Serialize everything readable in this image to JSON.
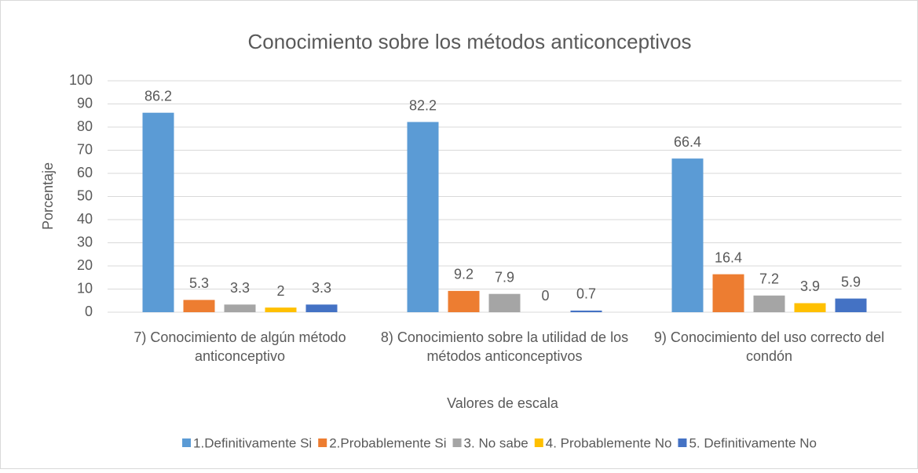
{
  "chart_data": {
    "type": "bar",
    "title": "Conocimiento sobre los métodos anticonceptivos",
    "x_label": "Valores de escala",
    "y_label": "Porcentaje",
    "categories": [
      "7) Conocimiento de algún método anticonceptivo",
      "8) Conocimiento sobre la utilidad de los métodos anticonceptivos",
      "9) Conocimiento del uso correcto del condón"
    ],
    "series": [
      {
        "name": "1.Definitivamente Si",
        "color": "#5b9bd5",
        "values": [
          86.2,
          82.2,
          66.4
        ]
      },
      {
        "name": "2.Probablemente Si",
        "color": "#ed7d31",
        "values": [
          5.3,
          9.2,
          16.4
        ]
      },
      {
        "name": "3. No sabe",
        "color": "#a5a5a5",
        "values": [
          3.3,
          7.9,
          7.2
        ]
      },
      {
        "name": "4. Probablemente No",
        "color": "#ffc000",
        "values": [
          2,
          0,
          3.9
        ]
      },
      {
        "name": "5. Definitivamente No",
        "color": "#4472c4",
        "values": [
          3.3,
          0.7,
          5.9
        ]
      }
    ],
    "ylim": [
      0,
      100
    ],
    "yticks": [
      0,
      10,
      20,
      30,
      40,
      50,
      60,
      70,
      80,
      90,
      100
    ],
    "grid": true,
    "legend": "bottom"
  }
}
